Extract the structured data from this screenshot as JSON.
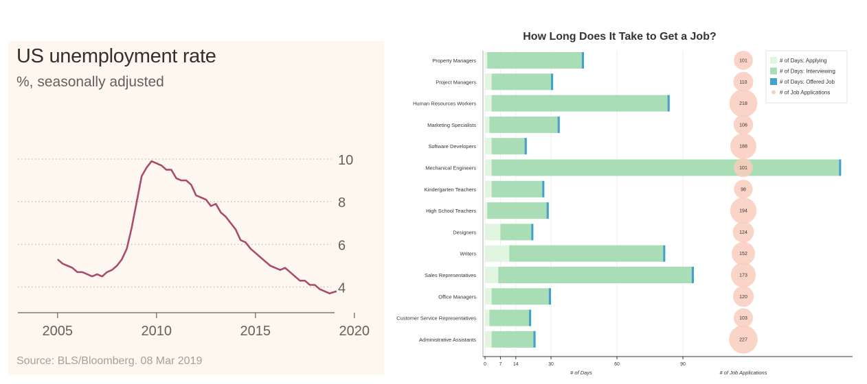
{
  "left": {
    "title": "US unemployment rate",
    "subtitle": "%, seasonally adjusted",
    "source": "Source: BLS/Bloomberg. 08 Mar 2019"
  },
  "right": {
    "title": "How Long Does It Take to Get a Job?"
  },
  "colors": {
    "line": "#a94b6d",
    "applying": "#e2f5e0",
    "interviewing": "#a8ddb5",
    "offered": "#43a2ca",
    "applications": "#f9cdbd"
  },
  "chart_data": [
    {
      "type": "line",
      "title": "US unemployment rate",
      "subtitle": "%, seasonally adjusted",
      "x_ticks": [
        2005,
        2010,
        2015,
        2020
      ],
      "y_ticks": [
        4,
        6,
        8,
        10
      ],
      "xlim": [
        2004,
        2020
      ],
      "ylim": [
        3,
        11
      ],
      "grid": "horizontal dotted",
      "series": [
        {
          "x": [
            2005.0,
            2005.25,
            2005.5,
            2005.75,
            2006.0,
            2006.25,
            2006.5,
            2006.75,
            2007.0,
            2007.25,
            2007.5,
            2007.75,
            2008.0,
            2008.25,
            2008.5,
            2008.75,
            2009.0,
            2009.25,
            2009.5,
            2009.75,
            2010.0,
            2010.25,
            2010.5,
            2010.75,
            2011.0,
            2011.25,
            2011.5,
            2011.75,
            2012.0,
            2012.25,
            2012.5,
            2012.75,
            2013.0,
            2013.25,
            2013.5,
            2013.75,
            2014.0,
            2014.25,
            2014.5,
            2014.75,
            2015.0,
            2015.25,
            2015.5,
            2015.75,
            2016.0,
            2016.25,
            2016.5,
            2016.75,
            2017.0,
            2017.25,
            2017.5,
            2017.75,
            2018.0,
            2018.25,
            2018.5,
            2018.75,
            2019.1
          ],
          "y": [
            5.3,
            5.1,
            5.0,
            4.9,
            4.7,
            4.7,
            4.6,
            4.5,
            4.6,
            4.5,
            4.7,
            4.8,
            5.0,
            5.3,
            5.8,
            6.8,
            8.0,
            9.2,
            9.6,
            9.9,
            9.8,
            9.7,
            9.5,
            9.5,
            9.1,
            9.0,
            9.0,
            8.8,
            8.3,
            8.2,
            8.1,
            7.8,
            7.9,
            7.5,
            7.3,
            7.0,
            6.7,
            6.2,
            6.1,
            5.8,
            5.6,
            5.4,
            5.2,
            5.0,
            4.9,
            4.8,
            4.9,
            4.7,
            4.5,
            4.3,
            4.3,
            4.1,
            4.1,
            3.9,
            3.8,
            3.7,
            3.8
          ]
        }
      ]
    },
    {
      "type": "bar",
      "orientation": "horizontal",
      "stacked": true,
      "title": "How Long Does It Take to Get a Job?",
      "xlabel": "# of Days",
      "xlabel2": "# of Job Applications",
      "x_ticks": [
        0,
        7,
        14,
        30,
        60,
        90
      ],
      "legend_position": "top-right",
      "categories": [
        "Property Managers",
        "Project Managers",
        "Human Resources Workers",
        "Marketing Specialists",
        "Software Developers",
        "Mechanical Engineers",
        "Kindergarten Teachers",
        "High School Teachers",
        "Designers",
        "Writers",
        "Sales Representatives",
        "Office Managers",
        "Customer Service Representatives",
        "Administrative Assistants"
      ],
      "series": [
        {
          "name": "# of Days: Applying",
          "values": [
            1,
            3,
            3,
            2,
            3,
            3,
            3,
            1,
            7,
            11,
            6,
            3,
            2,
            3
          ]
        },
        {
          "name": "# of Days: Interviewing",
          "values": [
            43,
            27,
            80,
            31,
            15,
            158,
            23,
            27,
            14,
            70,
            88,
            26,
            18,
            19
          ]
        },
        {
          "name": "# of Days: Offered Job",
          "values": [
            1,
            1,
            1,
            1,
            1,
            1,
            1,
            1,
            1,
            1,
            1,
            1,
            1,
            1
          ]
        },
        {
          "name": "# of Job Applications",
          "values": [
            101,
            110,
            218,
            106,
            188,
            101,
            98,
            194,
            124,
            152,
            173,
            120,
            103,
            227
          ]
        }
      ]
    }
  ]
}
